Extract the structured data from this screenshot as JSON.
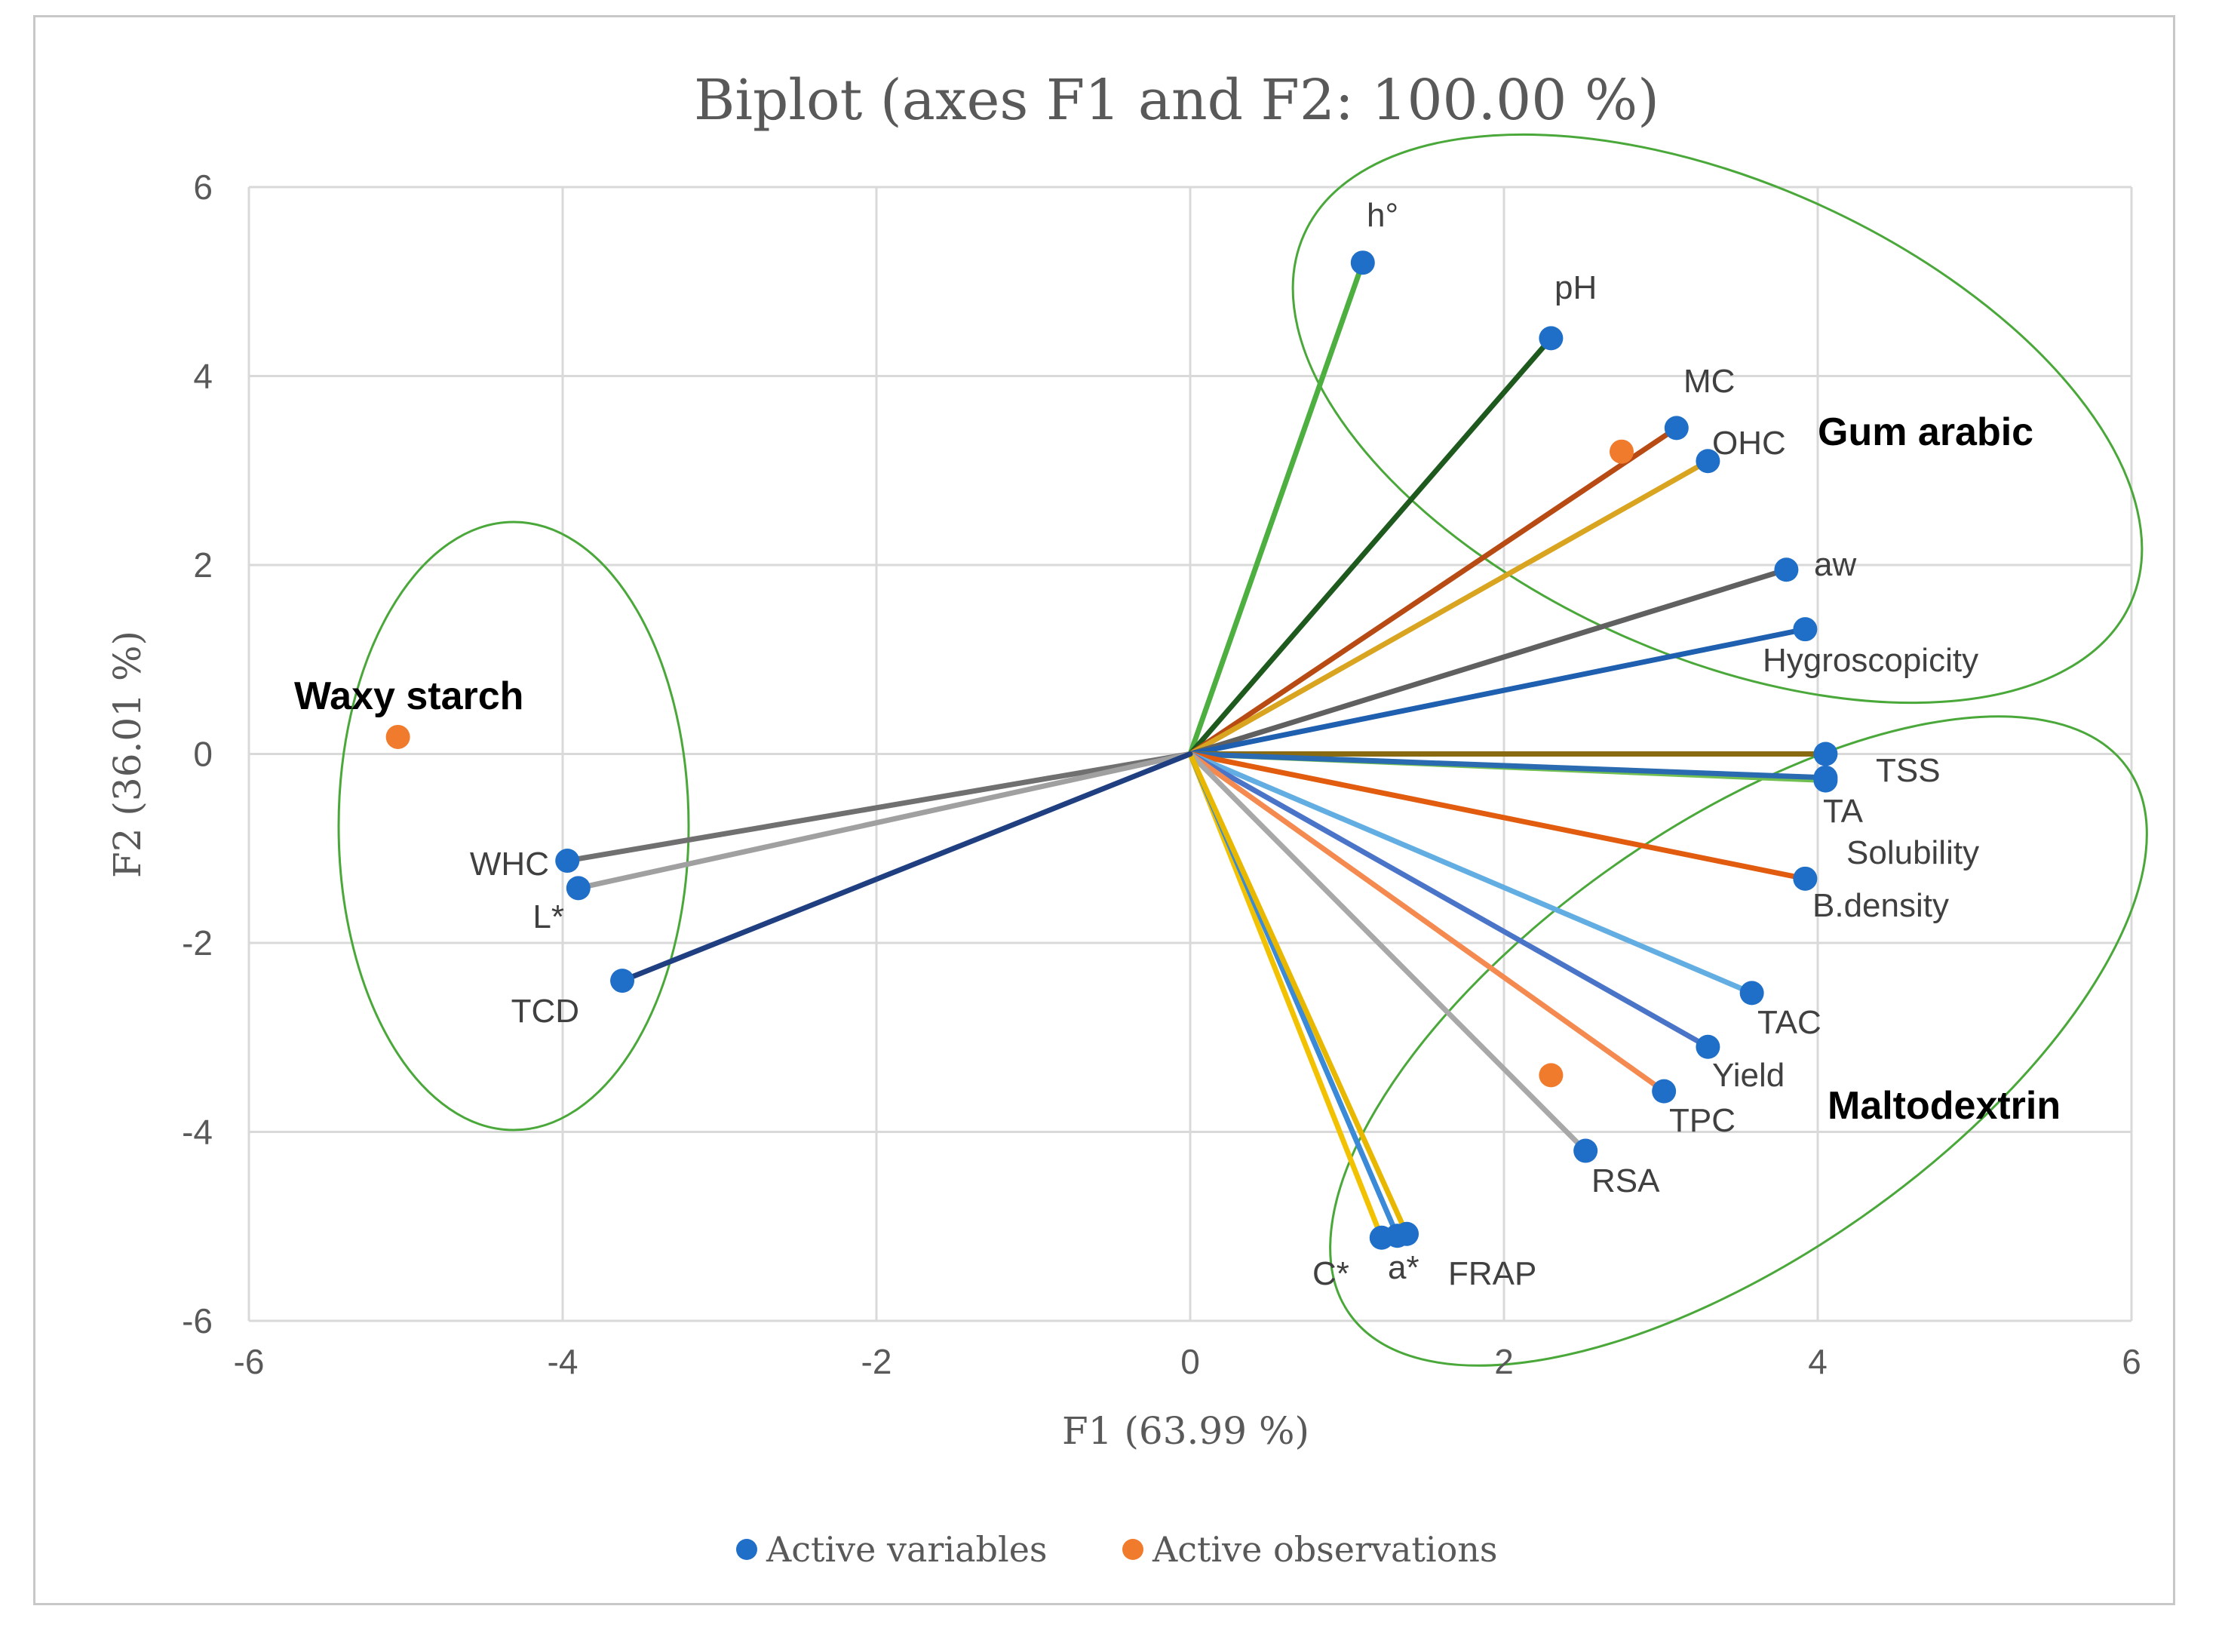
{
  "chart_data": {
    "type": "scatter",
    "subtype": "biplot",
    "title": "Biplot (axes F1 and F2: 100.00 %)",
    "xlabel": "F1 (63.99 %)",
    "ylabel": "F2 (36.01 %)",
    "xlim": [
      -6,
      6
    ],
    "ylim": [
      -6,
      6
    ],
    "xticks": [
      -6,
      -4,
      -2,
      0,
      2,
      4,
      6
    ],
    "yticks": [
      -6,
      -4,
      -2,
      0,
      2,
      4,
      6
    ],
    "xtick_labels": [
      "-6",
      "-4",
      "-2",
      "0",
      "2",
      "4",
      "6"
    ],
    "ytick_labels": [
      "-6",
      "-4",
      "-2",
      "0",
      "2",
      "4",
      "6"
    ],
    "grid": true,
    "variables": [
      {
        "name": "h°",
        "x": 1.1,
        "y": 5.2,
        "color": "#4caf3f"
      },
      {
        "name": "pH",
        "x": 2.3,
        "y": 4.4,
        "color": "#1e5a1e"
      },
      {
        "name": "MC",
        "x": 3.1,
        "y": 3.45,
        "color": "#b84a14"
      },
      {
        "name": "OHC",
        "x": 3.3,
        "y": 3.1,
        "color": "#d9a520"
      },
      {
        "name": "aw",
        "x": 3.8,
        "y": 1.95,
        "color": "#606060"
      },
      {
        "name": "Hygroscopicity",
        "x": 3.92,
        "y": 1.32,
        "color": "#1f5fb0"
      },
      {
        "name": "TSS",
        "x": 4.05,
        "y": 0.0,
        "color": "#8a6a10"
      },
      {
        "name": "TA",
        "x": 4.05,
        "y": -0.28,
        "color": "#70bf50"
      },
      {
        "name": "Solubility",
        "x": 4.05,
        "y": -0.25,
        "color": "#2a6ab0"
      },
      {
        "name": "B.density",
        "x": 3.92,
        "y": -1.32,
        "color": "#e25c10"
      },
      {
        "name": "TAC",
        "x": 3.58,
        "y": -2.53,
        "color": "#62aee2"
      },
      {
        "name": "Yield",
        "x": 3.3,
        "y": -3.1,
        "color": "#4a74c8"
      },
      {
        "name": "TPC",
        "x": 3.02,
        "y": -3.57,
        "color": "#f58a50"
      },
      {
        "name": "RSA",
        "x": 2.52,
        "y": -4.2,
        "color": "#a8a8a8"
      },
      {
        "name": "C*",
        "x": 1.22,
        "y": -5.12,
        "color": "#f2c200"
      },
      {
        "name": "a*",
        "x": 1.32,
        "y": -5.1,
        "color": "#3a8ad8"
      },
      {
        "name": "FRAP",
        "x": 1.38,
        "y": -5.08,
        "color": "#e8b800"
      },
      {
        "name": "WHC",
        "x": -3.97,
        "y": -1.13,
        "color": "#707070"
      },
      {
        "name": "L*",
        "x": -3.9,
        "y": -1.42,
        "color": "#a0a0a0"
      },
      {
        "name": "TCD",
        "x": -3.62,
        "y": -2.4,
        "color": "#1f3f80"
      }
    ],
    "observations": [
      {
        "name": "Gum arabic",
        "x": 2.75,
        "y": 3.2
      },
      {
        "name": "Waxy starch",
        "x": -5.05,
        "y": 0.18
      },
      {
        "name": "Maltodextrin",
        "x": 2.3,
        "y": -3.4
      }
    ],
    "legend": [
      {
        "label": "Active variables",
        "color": "#1f6fc8"
      },
      {
        "label": "Active observations",
        "color": "#f07b2c"
      }
    ],
    "legend_position": "bottom",
    "marker_color_variables": "#1f6fc8",
    "marker_color_observations": "#f07b2c",
    "ellipse_color": "#4aa83a"
  }
}
